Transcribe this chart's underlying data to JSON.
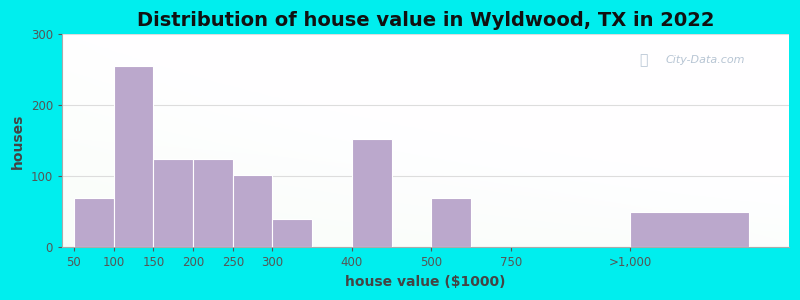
{
  "title": "Distribution of house value in Wyldwood, TX in 2022",
  "xlabel": "house value ($1000)",
  "ylabel": "houses",
  "bar_labels": [
    "50",
    "100",
    "150",
    "200",
    "250",
    "300",
    "400",
    "500",
    "750",
    ">1,000"
  ],
  "bar_values": [
    70,
    255,
    125,
    125,
    102,
    40,
    152,
    70,
    0,
    50
  ],
  "bar_left_edges": [
    0,
    1,
    2,
    3,
    4,
    5,
    7,
    9,
    11,
    14
  ],
  "bar_widths": [
    1,
    1,
    1,
    1,
    1,
    1,
    1,
    1,
    2,
    3
  ],
  "bar_color": "#BBA8CC",
  "bar_edgecolor": "#BBA8CC",
  "ylim": [
    0,
    300
  ],
  "yticks": [
    0,
    100,
    200,
    300
  ],
  "xlim": [
    -0.3,
    18
  ],
  "outer_bg": "#00EEEE",
  "grid_color": "#dddddd",
  "title_fontsize": 14,
  "axis_label_fontsize": 10,
  "tick_fontsize": 8.5,
  "watermark_text": "City-Data.com",
  "watermark_color": "#aabbcc"
}
